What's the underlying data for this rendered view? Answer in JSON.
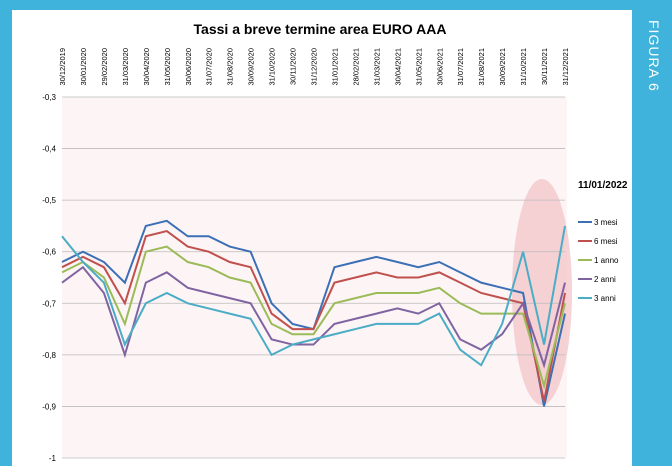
{
  "sidebar": "FIGURA 6",
  "chart_data": {
    "type": "line",
    "title": "Tassi a breve termine area EURO AAA",
    "annotation": "11/01/2022",
    "categories": [
      "30/12/2019",
      "30/01/2020",
      "29/02/2020",
      "31/03/2020",
      "30/04/2020",
      "31/05/2020",
      "30/06/2020",
      "31/07/2020",
      "31/08/2020",
      "30/09/2020",
      "31/10/2020",
      "30/11/2020",
      "31/12/2020",
      "31/01/2021",
      "28/02/2021",
      "31/03/2021",
      "30/04/2021",
      "31/05/2021",
      "30/06/2021",
      "31/07/2021",
      "31/08/2021",
      "30/09/2021",
      "31/10/2021",
      "30/11/2021",
      "31/12/2021"
    ],
    "ylim": [
      -1,
      -0.3
    ],
    "yticks": [
      {
        "value": -0.3,
        "label": "-0,3"
      },
      {
        "value": -0.4,
        "label": "-0,4"
      },
      {
        "value": -0.5,
        "label": "-0,5"
      },
      {
        "value": -0.6,
        "label": "-0,6"
      },
      {
        "value": -0.7,
        "label": "-0,7"
      },
      {
        "value": -0.8,
        "label": "-0,8"
      },
      {
        "value": -0.9,
        "label": "-0,9"
      },
      {
        "value": -1,
        "label": "-1"
      }
    ],
    "grid": true,
    "series": [
      {
        "name": "3 mesi",
        "color": "#3b6fb6",
        "values": [
          -0.62,
          -0.6,
          -0.62,
          -0.66,
          -0.55,
          -0.54,
          -0.57,
          -0.57,
          -0.59,
          -0.6,
          -0.7,
          -0.74,
          -0.75,
          -0.63,
          -0.62,
          -0.61,
          -0.62,
          -0.63,
          -0.62,
          -0.64,
          -0.66,
          -0.67,
          -0.68,
          -0.9,
          -0.72
        ]
      },
      {
        "name": "6 mesi",
        "color": "#c0504d",
        "values": [
          -0.63,
          -0.61,
          -0.63,
          -0.7,
          -0.57,
          -0.56,
          -0.59,
          -0.6,
          -0.62,
          -0.63,
          -0.72,
          -0.75,
          -0.75,
          -0.66,
          -0.65,
          -0.64,
          -0.65,
          -0.65,
          -0.64,
          -0.66,
          -0.68,
          -0.69,
          -0.7,
          -0.89,
          -0.68
        ]
      },
      {
        "name": "1 anno",
        "color": "#9bbb59",
        "values": [
          -0.64,
          -0.62,
          -0.65,
          -0.74,
          -0.6,
          -0.59,
          -0.62,
          -0.63,
          -0.65,
          -0.66,
          -0.74,
          -0.76,
          -0.76,
          -0.7,
          -0.69,
          -0.68,
          -0.68,
          -0.68,
          -0.67,
          -0.7,
          -0.72,
          -0.72,
          -0.72,
          -0.86,
          -0.7
        ]
      },
      {
        "name": "2 anni",
        "color": "#8064a2",
        "values": [
          -0.66,
          -0.63,
          -0.68,
          -0.8,
          -0.66,
          -0.64,
          -0.67,
          -0.68,
          -0.69,
          -0.7,
          -0.77,
          -0.78,
          -0.78,
          -0.74,
          -0.73,
          -0.72,
          -0.71,
          -0.72,
          -0.7,
          -0.77,
          -0.79,
          -0.76,
          -0.7,
          -0.82,
          -0.66
        ]
      },
      {
        "name": "3 anni",
        "color": "#4bacc6",
        "values": [
          -0.57,
          -0.62,
          -0.66,
          -0.78,
          -0.7,
          -0.68,
          -0.7,
          -0.71,
          -0.72,
          -0.73,
          -0.8,
          -0.78,
          -0.77,
          -0.76,
          -0.75,
          -0.74,
          -0.74,
          -0.74,
          -0.72,
          -0.79,
          -0.82,
          -0.74,
          -0.6,
          -0.78,
          -0.55
        ]
      }
    ]
  }
}
